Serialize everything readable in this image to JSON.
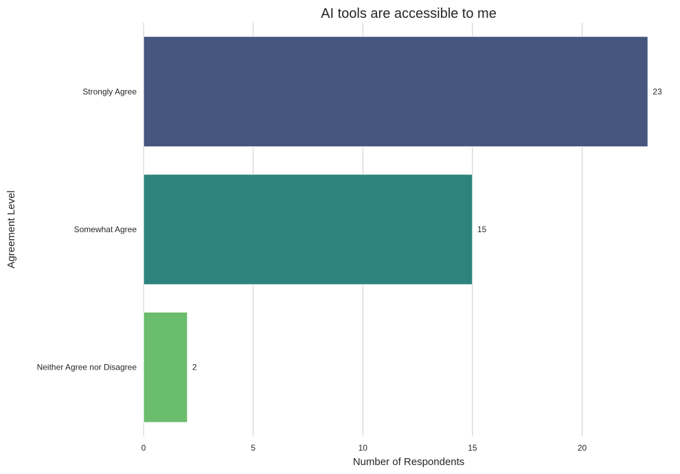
{
  "chart_data": {
    "type": "bar",
    "orientation": "horizontal",
    "title": "AI tools are accessible to me",
    "xlabel": "Number of Respondents",
    "ylabel": "Agreement Level",
    "categories": [
      "Strongly Agree",
      "Somewhat Agree",
      "Neither Agree nor Disagree"
    ],
    "values": [
      23,
      15,
      2
    ],
    "colors": [
      "#46567f",
      "#2e837d",
      "#6abd6d"
    ],
    "xlim": [
      0,
      23.9
    ],
    "xticks": [
      0,
      5,
      10,
      15,
      20
    ],
    "grid": "vertical",
    "data_labels": true
  }
}
